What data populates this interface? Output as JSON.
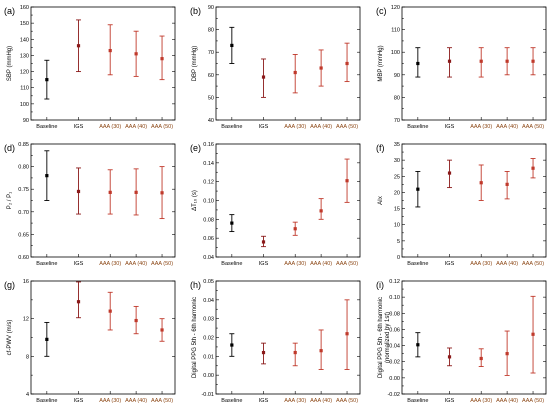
{
  "figure": {
    "colors": {
      "baseline": "#000000",
      "igs": "#8b1a1a",
      "aaa": "#c0392b",
      "cat_black": "#000000",
      "cat_brown": "#8b4513"
    }
  },
  "chart_data": [
    {
      "type": "scatter",
      "panel": "(a)",
      "ylabel": "SBP (mmHg)",
      "categories": [
        "Baseline",
        "IGS",
        "AAA (30)",
        "AAA (40)",
        "AAA (50)"
      ],
      "ylim": [
        90,
        160
      ],
      "yticks": [
        90,
        100,
        110,
        120,
        130,
        140,
        150,
        160
      ],
      "ytick_labels": [
        "90",
        "100",
        "110",
        "120",
        "130",
        "140",
        "150",
        "160"
      ],
      "series": [
        {
          "values": [
            115,
            136,
            133,
            131,
            128
          ],
          "err_low": [
            103,
            120,
            118,
            117,
            115
          ],
          "err_high": [
            127,
            152,
            149,
            145,
            142
          ]
        }
      ]
    },
    {
      "type": "scatter",
      "panel": "(b)",
      "ylabel": "DBP (mmHg)",
      "categories": [
        "Baseline",
        "IGS",
        "AAA (30)",
        "AAA (40)",
        "AAA (50)"
      ],
      "ylim": [
        40,
        90
      ],
      "yticks": [
        40,
        50,
        60,
        70,
        80,
        90
      ],
      "ytick_labels": [
        "40",
        "50",
        "60",
        "70",
        "80",
        "90"
      ],
      "series": [
        {
          "values": [
            73,
            59,
            61,
            63,
            65
          ],
          "err_low": [
            65,
            50,
            52,
            55,
            57
          ],
          "err_high": [
            81,
            67,
            69,
            71,
            74
          ]
        }
      ]
    },
    {
      "type": "scatter",
      "panel": "(c)",
      "ylabel": "MBP (mmHg)",
      "categories": [
        "Baseline",
        "IGS",
        "AAA (30)",
        "AAA (40)",
        "AAA (50)"
      ],
      "ylim": [
        70,
        120
      ],
      "yticks": [
        70,
        80,
        90,
        100,
        110,
        120
      ],
      "ytick_labels": [
        "70",
        "80",
        "90",
        "100",
        "110",
        "120"
      ],
      "series": [
        {
          "values": [
            95,
            96,
            96,
            96,
            96
          ],
          "err_low": [
            89,
            89,
            89,
            90,
            90
          ],
          "err_high": [
            102,
            102,
            102,
            102,
            102
          ]
        }
      ]
    },
    {
      "type": "scatter",
      "panel": "(d)",
      "ylabel": "P₂ / P₁",
      "categories": [
        "Baseline",
        "IGS",
        "AAA (30)",
        "AAA (40)",
        "AAA (50)"
      ],
      "ylim": [
        0.6,
        0.85
      ],
      "yticks": [
        0.6,
        0.65,
        0.7,
        0.75,
        0.8,
        0.85
      ],
      "ytick_labels": [
        "0.60",
        "0.65",
        "0.70",
        "0.75",
        "0.80",
        "0.85"
      ],
      "series": [
        {
          "values": [
            0.78,
            0.745,
            0.743,
            0.743,
            0.742
          ],
          "err_low": [
            0.725,
            0.695,
            0.695,
            0.693,
            0.685
          ],
          "err_high": [
            0.835,
            0.797,
            0.793,
            0.795,
            0.8
          ]
        }
      ]
    },
    {
      "type": "scatter",
      "panel": "(e)",
      "ylabel": "ΔT₁₆ (s)",
      "categories": [
        "Baseline",
        "IGS",
        "AAA (30)",
        "AAA (40)",
        "AAA (50)"
      ],
      "ylim": [
        0.04,
        0.16
      ],
      "yticks": [
        0.04,
        0.06,
        0.08,
        0.1,
        0.12,
        0.14,
        0.16
      ],
      "ytick_labels": [
        "0.04",
        "0.06",
        "0.08",
        "0.10",
        "0.12",
        "0.14",
        "0.16"
      ],
      "series": [
        {
          "values": [
            0.076,
            0.056,
            0.07,
            0.089,
            0.121
          ],
          "err_low": [
            0.067,
            0.051,
            0.063,
            0.08,
            0.098
          ],
          "err_high": [
            0.085,
            0.062,
            0.077,
            0.102,
            0.144
          ]
        }
      ]
    },
    {
      "type": "scatter",
      "panel": "(f)",
      "ylabel": "AIx",
      "categories": [
        "Baseline",
        "IGS",
        "AAA (30)",
        "AAA (40)",
        "AAA (50)"
      ],
      "ylim": [
        0,
        35
      ],
      "yticks": [
        0,
        5,
        10,
        15,
        20,
        25,
        30,
        35
      ],
      "ytick_labels": [
        "0",
        "5",
        "10",
        "15",
        "20",
        "25",
        "30",
        "35"
      ],
      "series": [
        {
          "values": [
            21,
            26,
            23,
            22.5,
            27.5
          ],
          "err_low": [
            15.5,
            21.5,
            17.5,
            18,
            24.5
          ],
          "err_high": [
            26.5,
            30,
            28.5,
            26.5,
            30.5
          ]
        }
      ]
    },
    {
      "type": "scatter",
      "panel": "(g)",
      "ylabel": "cf-PWV (m/s)",
      "categories": [
        "Baseline",
        "IGS",
        "AAA (30)",
        "AAA (40)",
        "AAA (50)"
      ],
      "ylim": [
        4,
        16
      ],
      "yticks": [
        4,
        8,
        12,
        16
      ],
      "ytick_labels": [
        "4",
        "8",
        "12",
        "16"
      ],
      "series": [
        {
          "values": [
            9.8,
            13.8,
            12.8,
            11.8,
            10.8
          ],
          "err_low": [
            8.0,
            12.1,
            10.8,
            10.4,
            9.6
          ],
          "err_high": [
            11.6,
            15.9,
            14.8,
            13.3,
            12.0
          ]
        }
      ]
    },
    {
      "type": "scatter",
      "panel": "(h)",
      "ylabel": "Digital PPG 5th - 6th harmonic",
      "categories": [
        "Baseline",
        "IGS",
        "AAA (30)",
        "AAA (40)",
        "AAA (50)"
      ],
      "ylim": [
        -0.01,
        0.05
      ],
      "yticks": [
        -0.01,
        0.0,
        0.01,
        0.02,
        0.03,
        0.04,
        0.05
      ],
      "ytick_labels": [
        "-0.01",
        "0.00",
        "0.01",
        "0.02",
        "0.03",
        "0.04",
        "0.05"
      ],
      "series": [
        {
          "values": [
            0.016,
            0.012,
            0.012,
            0.013,
            0.022
          ],
          "err_low": [
            0.01,
            0.006,
            0.005,
            0.003,
            0.003
          ],
          "err_high": [
            0.022,
            0.017,
            0.017,
            0.024,
            0.04
          ]
        }
      ]
    },
    {
      "type": "scatter",
      "panel": "(i)",
      "ylabel": "Digital PPG 5th - 6th harmonic",
      "ylabel2": "(normalized by 1st)",
      "categories": [
        "Baseline",
        "IGS",
        "AAA (30)",
        "AAA (40)",
        "AAA (50)"
      ],
      "ylim": [
        -0.02,
        0.12
      ],
      "yticks": [
        -0.02,
        0.0,
        0.02,
        0.04,
        0.06,
        0.08,
        0.1,
        0.12
      ],
      "ytick_labels": [
        "-0.02",
        "0.00",
        "0.02",
        "0.04",
        "0.06",
        "0.08",
        "0.10",
        "0.12"
      ],
      "series": [
        {
          "values": [
            0.041,
            0.026,
            0.024,
            0.03,
            0.054
          ],
          "err_low": [
            0.026,
            0.015,
            0.014,
            0.003,
            0.006
          ],
          "err_high": [
            0.056,
            0.037,
            0.036,
            0.058,
            0.101
          ]
        }
      ]
    }
  ]
}
